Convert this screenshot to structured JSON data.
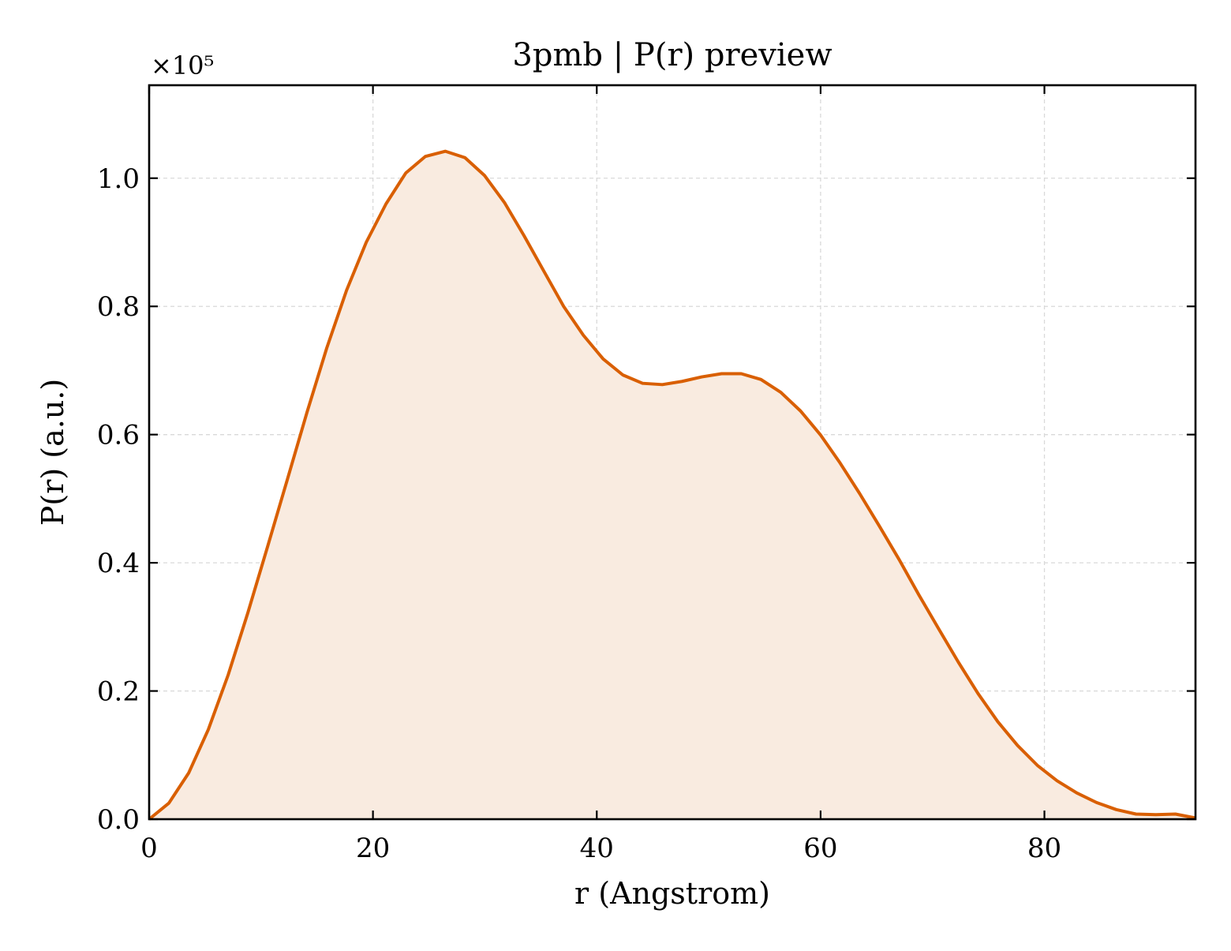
{
  "chart_data": {
    "type": "area",
    "title": "3pmb | P(r) preview",
    "xlabel": "r (Angstrom)",
    "ylabel": "P(r) (a.u.)",
    "y_offset_label": "×10⁵",
    "xlim": [
      0,
      93.5
    ],
    "ylim": [
      0,
      1.145
    ],
    "x_ticks": [
      0,
      20,
      40,
      60,
      80
    ],
    "x_tick_labels": [
      "0",
      "20",
      "40",
      "60",
      "80"
    ],
    "y_ticks": [
      0,
      0.2,
      0.4,
      0.6,
      0.8,
      1.0
    ],
    "y_tick_labels": [
      "0.0",
      "0.2",
      "0.4",
      "0.6",
      "0.8",
      "1.0"
    ],
    "grid": true,
    "legend": "none",
    "colors": {
      "line": "#d95f02",
      "fill": "#f9ebe0",
      "grid": "#d9d9d9",
      "axes": "#000000"
    },
    "series": [
      {
        "x": [
          0,
          1.76,
          3.53,
          5.29,
          7.06,
          8.82,
          10.58,
          12.35,
          14.11,
          15.87,
          17.64,
          19.4,
          21.17,
          22.93,
          24.69,
          26.46,
          28.22,
          29.98,
          31.75,
          33.51,
          35.27,
          37.04,
          38.8,
          40.57,
          42.33,
          44.09,
          45.86,
          47.62,
          49.38,
          51.15,
          52.91,
          54.67,
          56.44,
          58.2,
          59.97,
          61.73,
          63.49,
          65.26,
          67.02,
          68.78,
          70.55,
          72.31,
          74.07,
          75.84,
          77.6,
          79.37,
          81.13,
          82.89,
          84.66,
          86.42,
          88.18,
          89.95,
          91.71,
          93.47
        ],
        "y": [
          0.0,
          0.025,
          0.072,
          0.14,
          0.225,
          0.322,
          0.425,
          0.53,
          0.635,
          0.735,
          0.825,
          0.9,
          0.96,
          1.008,
          1.034,
          1.042,
          1.032,
          1.004,
          0.962,
          0.91,
          0.855,
          0.8,
          0.755,
          0.718,
          0.693,
          0.68,
          0.678,
          0.683,
          0.69,
          0.695,
          0.695,
          0.686,
          0.666,
          0.637,
          0.6,
          0.556,
          0.508,
          0.457,
          0.405,
          0.35,
          0.297,
          0.245,
          0.196,
          0.152,
          0.115,
          0.084,
          0.06,
          0.041,
          0.026,
          0.015,
          0.008,
          0.007,
          0.008,
          0.002
        ]
      }
    ]
  }
}
